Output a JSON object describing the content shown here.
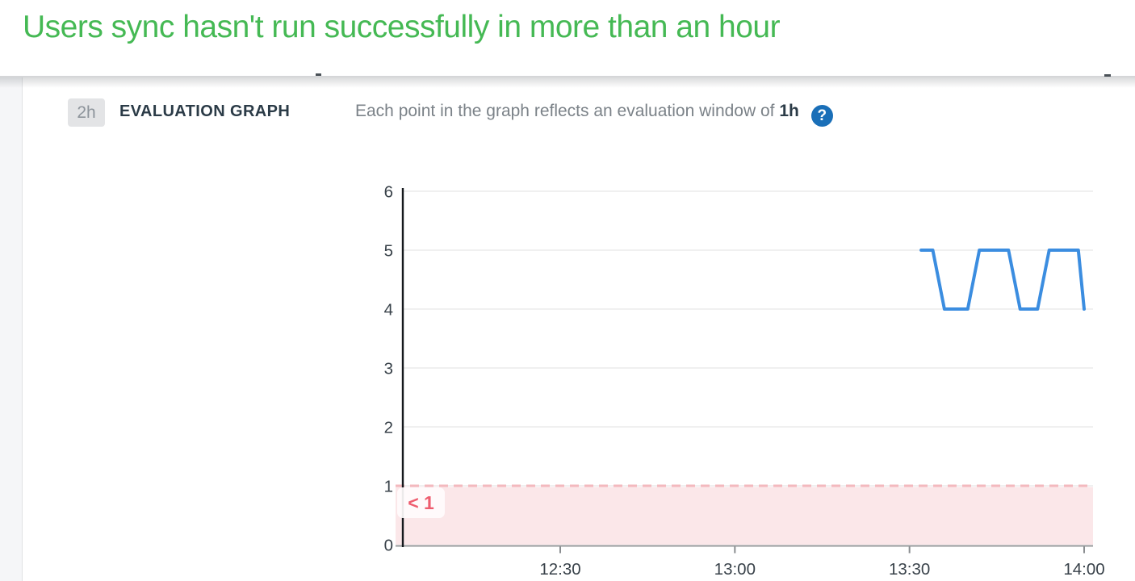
{
  "page": {
    "title": "Users sync hasn't run successfully in more than an hour"
  },
  "evaluation": {
    "window_badge": "2h",
    "section_label": "EVALUATION GRAPH",
    "description_prefix": "Each point in the graph reflects an evaluation window of",
    "description_window": "1h",
    "help_icon_glyph": "?"
  },
  "chart_data": {
    "type": "line",
    "title": "",
    "xlabel": "",
    "ylabel": "",
    "x_ticks": [
      "12:30",
      "13:00",
      "13:30",
      "14:00"
    ],
    "x_range": [
      "12:02",
      "14:01"
    ],
    "y_ticks": [
      0,
      1,
      2,
      3,
      4,
      5,
      6
    ],
    "ylim": [
      0,
      6
    ],
    "grid": true,
    "legend": "none",
    "series": [
      {
        "name": "evaluation-values",
        "color": "#3b8de0",
        "points": [
          [
            "13:32",
            5
          ],
          [
            "13:34",
            5
          ],
          [
            "13:36",
            4
          ],
          [
            "13:40",
            4
          ],
          [
            "13:42",
            5
          ],
          [
            "13:47",
            5
          ],
          [
            "13:49",
            4
          ],
          [
            "13:52",
            4
          ],
          [
            "13:54",
            5
          ],
          [
            "13:59",
            5
          ],
          [
            "14:00",
            4
          ]
        ]
      }
    ],
    "threshold": {
      "operator": "<",
      "value": 1,
      "label": "< 1",
      "fill_color": "#fbe7e9",
      "line_color": "#f3b9be",
      "text_color": "#ee5d6f"
    }
  },
  "colors": {
    "title_green": "#45b954",
    "heading_slate": "#2b3b47",
    "description_gray": "#7b8288",
    "help_blue": "#1a6fb8",
    "series_blue": "#3b8de0",
    "threshold_red": "#ee5d6f"
  }
}
